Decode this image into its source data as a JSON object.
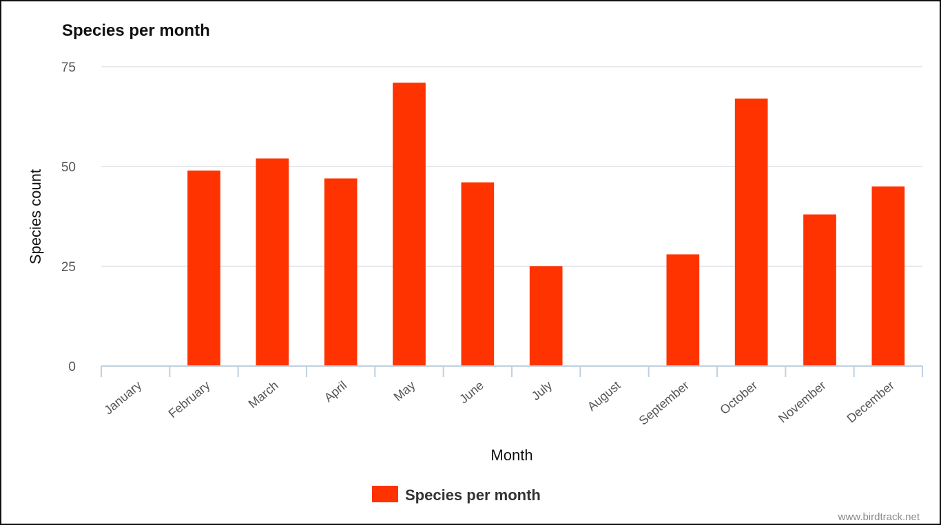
{
  "chart_data": {
    "type": "bar",
    "title": "Species per month",
    "xlabel": "Month",
    "ylabel": "Species count",
    "categories": [
      "January",
      "February",
      "March",
      "April",
      "May",
      "June",
      "July",
      "August",
      "September",
      "October",
      "November",
      "December"
    ],
    "series": [
      {
        "name": "Species per month",
        "values": [
          0,
          49,
          52,
          47,
          71,
          46,
          25,
          0,
          28,
          67,
          38,
          45
        ],
        "color": "#ff3300"
      }
    ],
    "ylim": [
      0,
      75
    ],
    "yticks": [
      0,
      25,
      50,
      75
    ],
    "grid": true,
    "legend": "bottom-center",
    "credit": "www.birdtrack.net"
  }
}
